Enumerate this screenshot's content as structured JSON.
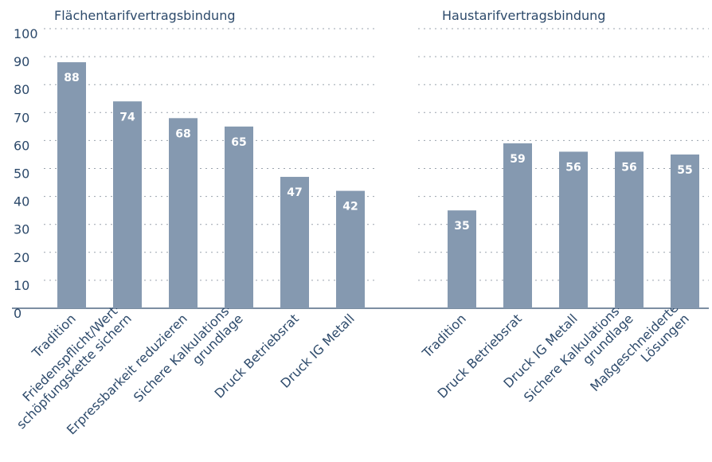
{
  "chart_data": [
    {
      "type": "bar",
      "title": "Flächentarifvertragsbindung",
      "categories": [
        "Tradition",
        "Friedenspflicht/Wert-\nschöpfungskette sichern",
        "Erpressbarkeit reduzieren",
        "Sichere Kalkulations-\ngrundlage",
        "Druck Betriebsrat",
        "Druck IG Metall"
      ],
      "values": [
        88,
        74,
        68,
        65,
        47,
        42
      ],
      "color": "#8599b0",
      "ylim": [
        0,
        100
      ],
      "yticks": [
        0,
        10,
        20,
        30,
        40,
        50,
        60,
        70,
        80,
        90,
        100
      ],
      "grid": true
    },
    {
      "type": "bar",
      "title": "Haustarifvertragsbindung",
      "categories": [
        "Tradition",
        "Druck Betriebsrat",
        "Druck IG Metall",
        "Sichere Kalkulations-\ngrundlage",
        "Maßgeschneiderte\nLösungen"
      ],
      "values": [
        35,
        59,
        56,
        56,
        55
      ],
      "color": "#8599b0",
      "ylim": [
        0,
        100
      ],
      "yticks": [
        0,
        10,
        20,
        30,
        40,
        50,
        60,
        70,
        80,
        90,
        100
      ],
      "grid": true
    }
  ]
}
